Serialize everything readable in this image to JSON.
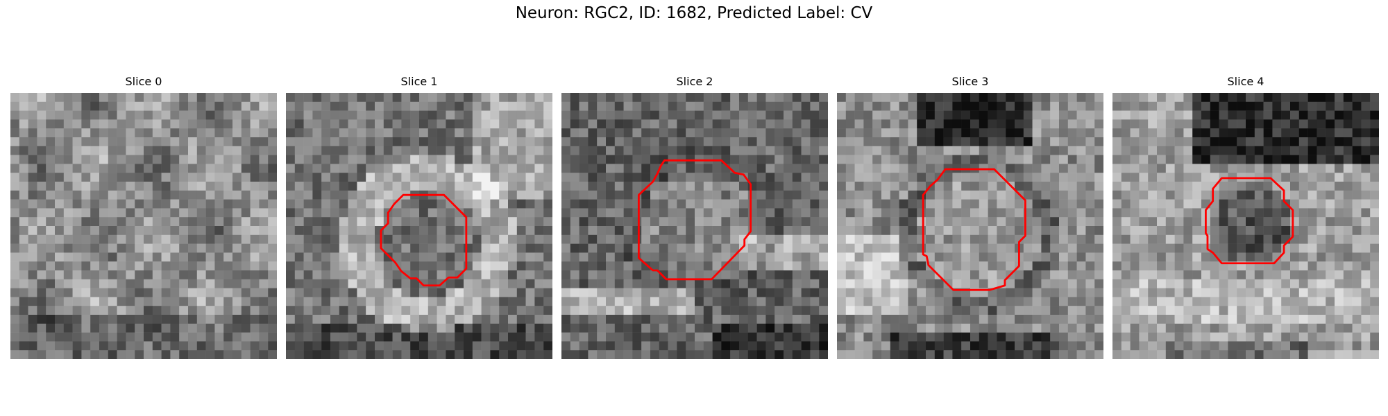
{
  "figure": {
    "title": "Neuron: RGC2, ID: 1682, Predicted Label: CV"
  },
  "colors": {
    "contour": "#ff0000",
    "background": "#ffffff"
  },
  "panels": [
    {
      "title": "Slice 0",
      "has_contour": false
    },
    {
      "title": "Slice 1",
      "has_contour": true
    },
    {
      "title": "Slice 2",
      "has_contour": true
    },
    {
      "title": "Slice 3",
      "has_contour": true
    },
    {
      "title": "Slice 4",
      "has_contour": true
    }
  ]
}
